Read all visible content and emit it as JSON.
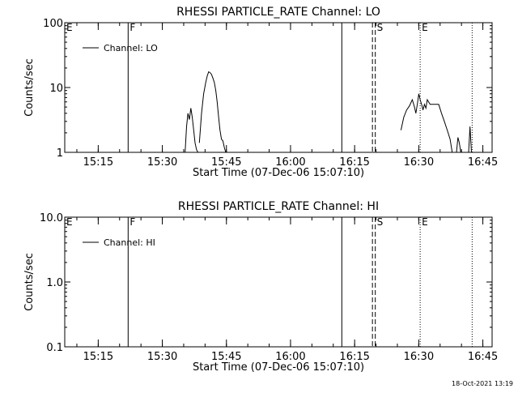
{
  "footer": {
    "timestamp": "18-Oct-2021 13:19"
  },
  "chart_data": [
    {
      "type": "line",
      "title": "RHESSI PARTICLE_RATE Channel: LO",
      "xlabel": "Start Time (07-Dec-06 15:07:10)",
      "ylabel": "Counts/sec",
      "yscale": "log",
      "ylim": [
        1,
        100
      ],
      "yticks": [
        1,
        10,
        100
      ],
      "ytick_labels": [
        "1",
        "10",
        "100"
      ],
      "xlim": [
        "15:07:10",
        "16:47:10"
      ],
      "xticks": [
        "15:15",
        "15:30",
        "15:45",
        "16:00",
        "16:15",
        "16:30",
        "16:45"
      ],
      "grid": false,
      "legend": {
        "position": "top-left",
        "entries": [
          "Channel: LO"
        ]
      },
      "markers": [
        {
          "time": "15:07:10",
          "label": "E",
          "style": "none"
        },
        {
          "time": "15:22:00",
          "label": "F",
          "style": "solid"
        },
        {
          "time": "16:12:00",
          "label": "",
          "style": "solid"
        },
        {
          "time": "16:19:10",
          "label": "",
          "style": "dashed"
        },
        {
          "time": "16:19:50",
          "label": "S",
          "style": "dashed"
        },
        {
          "time": "16:30:20",
          "label": "E",
          "style": "dotted"
        },
        {
          "time": "16:42:30",
          "label": "",
          "style": "dotted"
        }
      ],
      "series": [
        {
          "name": "Channel: LO",
          "segments": [
            {
              "x": [
                "15:35:20",
                "15:35:40",
                "15:36:00",
                "15:36:20",
                "15:36:40",
                "15:37:00",
                "15:37:20",
                "15:37:40",
                "15:38:00",
                "15:38:20"
              ],
              "y": [
                1,
                2.5,
                4,
                3.2,
                4.8,
                3.5,
                2.2,
                1.4,
                1.1,
                1
              ]
            },
            {
              "x": [
                "15:38:40",
                "15:39:10",
                "15:39:40",
                "15:40:10",
                "15:40:30",
                "15:40:50",
                "15:41:10",
                "15:41:30",
                "15:41:50",
                "15:42:10",
                "15:42:30",
                "15:42:50",
                "15:43:10",
                "15:43:30",
                "15:43:50",
                "15:44:10",
                "15:44:30",
                "15:44:50"
              ],
              "y": [
                1.4,
                4,
                8,
                12,
                15,
                17.5,
                17,
                16,
                14,
                12,
                9,
                6,
                3.5,
                2.2,
                1.6,
                1.5,
                1.2,
                1
              ]
            },
            {
              "x": [
                "16:25:50",
                "16:26:30",
                "16:27:10",
                "16:27:50",
                "16:28:30",
                "16:29:00",
                "16:29:20",
                "16:29:40",
                "16:30:00",
                "16:30:20",
                "16:30:40",
                "16:31:00",
                "16:31:20",
                "16:31:40",
                "16:32:00",
                "16:32:40",
                "16:33:20",
                "16:34:00",
                "16:34:40",
                "16:35:20",
                "16:36:00",
                "16:36:40",
                "16:37:20",
                "16:37:50"
              ],
              "y": [
                2.2,
                3.5,
                4.5,
                5.2,
                6.5,
                5,
                4,
                5.5,
                8,
                6.5,
                5.5,
                4.5,
                5.5,
                4.8,
                6.5,
                5.5,
                5.5,
                5.5,
                5.5,
                4,
                3,
                2.2,
                1.6,
                1
              ]
            },
            {
              "x": [
                "16:38:50",
                "16:39:10",
                "16:39:30",
                "16:39:50"
              ],
              "y": [
                1,
                1.7,
                1.4,
                1
              ]
            },
            {
              "x": [
                "16:41:40",
                "16:42:00",
                "16:42:20"
              ],
              "y": [
                1,
                2.5,
                1
              ]
            }
          ]
        }
      ]
    },
    {
      "type": "line",
      "title": "RHESSI PARTICLE_RATE Channel: HI",
      "xlabel": "Start Time (07-Dec-06 15:07:10)",
      "ylabel": "Counts/sec",
      "yscale": "log",
      "ylim": [
        0.1,
        10
      ],
      "yticks": [
        0.1,
        1,
        10
      ],
      "ytick_labels": [
        "0.1",
        "1.0",
        "10.0"
      ],
      "xlim": [
        "15:07:10",
        "16:47:10"
      ],
      "xticks": [
        "15:15",
        "15:30",
        "15:45",
        "16:00",
        "16:15",
        "16:30",
        "16:45"
      ],
      "grid": false,
      "legend": {
        "position": "top-left",
        "entries": [
          "Channel: HI"
        ]
      },
      "markers": [
        {
          "time": "15:07:10",
          "label": "E",
          "style": "none"
        },
        {
          "time": "15:22:00",
          "label": "F",
          "style": "solid"
        },
        {
          "time": "16:12:00",
          "label": "",
          "style": "solid"
        },
        {
          "time": "16:19:10",
          "label": "",
          "style": "dashed"
        },
        {
          "time": "16:19:50",
          "label": "S",
          "style": "dashed"
        },
        {
          "time": "16:30:20",
          "label": "E",
          "style": "dotted"
        },
        {
          "time": "16:42:30",
          "label": "",
          "style": "dotted"
        }
      ],
      "series": [
        {
          "name": "Channel: HI",
          "segments": []
        }
      ]
    }
  ]
}
